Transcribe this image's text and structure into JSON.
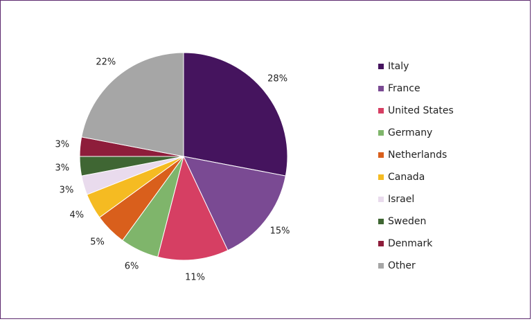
{
  "chart_data": {
    "type": "pie",
    "title": "",
    "slices": [
      {
        "label": "Italy",
        "value": 28,
        "text": "28%",
        "color": "#45145e"
      },
      {
        "label": "France",
        "value": 15,
        "text": "15%",
        "color": "#7a4a93"
      },
      {
        "label": "United States",
        "value": 11,
        "text": "11%",
        "color": "#d63f63"
      },
      {
        "label": "Germany",
        "value": 6,
        "text": "6%",
        "color": "#7fb56b"
      },
      {
        "label": "Netherlands",
        "value": 5,
        "text": "5%",
        "color": "#d95f1c"
      },
      {
        "label": "Canada",
        "value": 4,
        "text": "4%",
        "color": "#f5bb22"
      },
      {
        "label": "Israel",
        "value": 3,
        "text": "3%",
        "color": "#e9dbed"
      },
      {
        "label": "Sweden",
        "value": 3,
        "text": "3%",
        "color": "#3f6633"
      },
      {
        "label": "Denmark",
        "value": 3,
        "text": "3%",
        "color": "#8e1d3b"
      },
      {
        "label": "Other",
        "value": 22,
        "text": "22%",
        "color": "#a6a6a6"
      }
    ],
    "legend_position": "right",
    "start_angle": "12 o'clock",
    "direction": "clockwise"
  }
}
